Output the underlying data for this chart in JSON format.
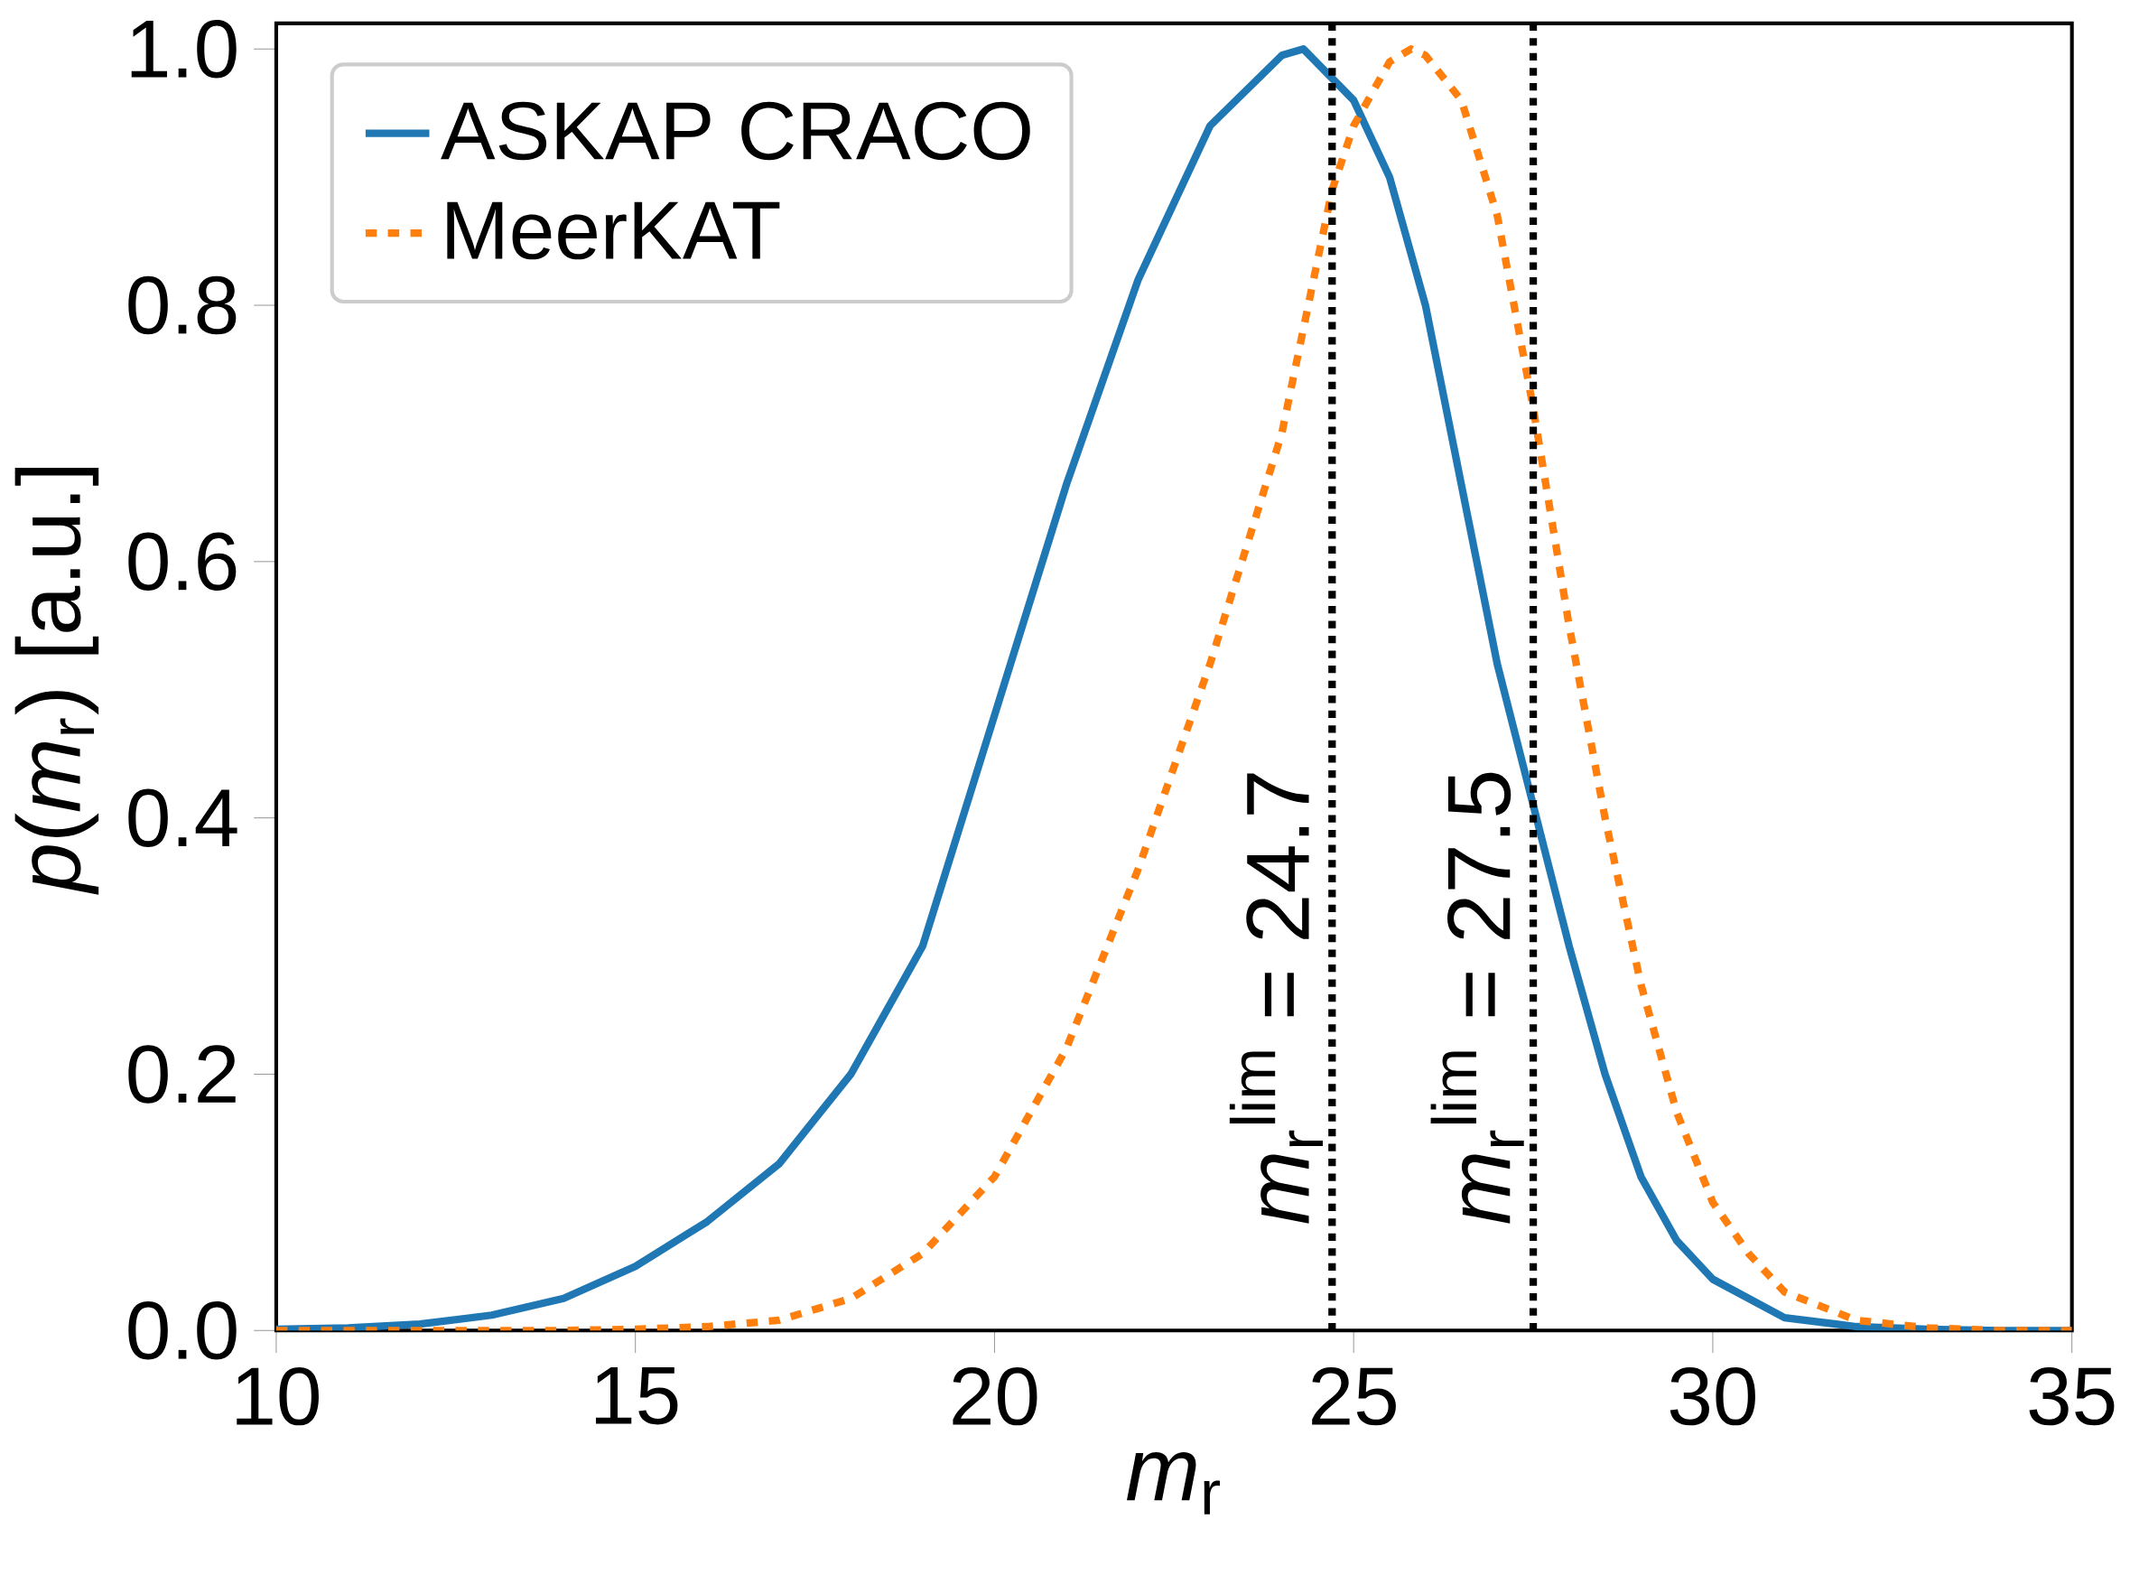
{
  "chart_data": {
    "type": "line",
    "xlabel": "*m*$_{r}$",
    "ylabel": "*p*(*m*$_{r}$) [a.u.]",
    "xlim": [
      10,
      35
    ],
    "xticks": [
      10,
      15,
      20,
      25,
      30,
      35
    ],
    "ylim": [
      0,
      1.02
    ],
    "yticks": [
      {
        "value": 0,
        "label": "0.0"
      },
      {
        "value": 0.2,
        "label": "0.2"
      },
      {
        "value": 0.4,
        "label": "0.4"
      },
      {
        "value": 0.6,
        "label": "0.6"
      },
      {
        "value": 0.8,
        "label": "0.8"
      },
      {
        "value": 1.0,
        "label": "1.0"
      }
    ],
    "legend": "top left",
    "marker": "none",
    "series": [
      {
        "name": "ASKAP CRACO",
        "color": "#1f77b4",
        "line_style": "solid",
        "x": [
          10,
          11,
          12,
          13,
          14,
          15,
          16,
          17,
          18,
          19,
          20,
          21,
          22,
          23,
          24,
          24.3,
          25,
          25.5,
          26,
          26.5,
          27,
          27.5,
          28,
          28.5,
          29,
          29.5,
          30,
          31,
          32,
          33,
          34,
          35
        ],
        "values": [
          0.001,
          0.002,
          0.005,
          0.012,
          0.025,
          0.05,
          0.085,
          0.13,
          0.2,
          0.3,
          0.48,
          0.66,
          0.82,
          0.94,
          0.995,
          1.0,
          0.96,
          0.9,
          0.8,
          0.66,
          0.52,
          0.41,
          0.3,
          0.2,
          0.12,
          0.07,
          0.04,
          0.01,
          0.003,
          0.001,
          0,
          0
        ]
      },
      {
        "name": "MeerKAT",
        "color": "#ff7f0e",
        "line_style": "dashed",
        "x": [
          10,
          12,
          14,
          15,
          16,
          17,
          18,
          19,
          20,
          21,
          22,
          23,
          24,
          24.7,
          25,
          25.5,
          25.8,
          26,
          26.5,
          27,
          27.5,
          28,
          28.5,
          29,
          29.5,
          30,
          30.5,
          31,
          32,
          33,
          34,
          35
        ],
        "values": [
          0,
          0,
          0,
          0.001,
          0.003,
          0.008,
          0.025,
          0.06,
          0.12,
          0.22,
          0.36,
          0.52,
          0.7,
          0.89,
          0.94,
          0.99,
          1.0,
          0.995,
          0.96,
          0.87,
          0.72,
          0.55,
          0.4,
          0.27,
          0.17,
          0.1,
          0.06,
          0.03,
          0.008,
          0.002,
          0,
          0
        ]
      }
    ],
    "ref_lines": [
      {
        "axis": "x",
        "value": 24.7,
        "label": "*m*$_{r}$$^{lim}$ = 24.7",
        "color": "#000000",
        "line_style": "dotted"
      },
      {
        "axis": "x",
        "value": 27.5,
        "label": "*m*$_{r}$$^{lim}$ = 27.5",
        "color": "#000000",
        "line_style": "dotted"
      }
    ]
  }
}
